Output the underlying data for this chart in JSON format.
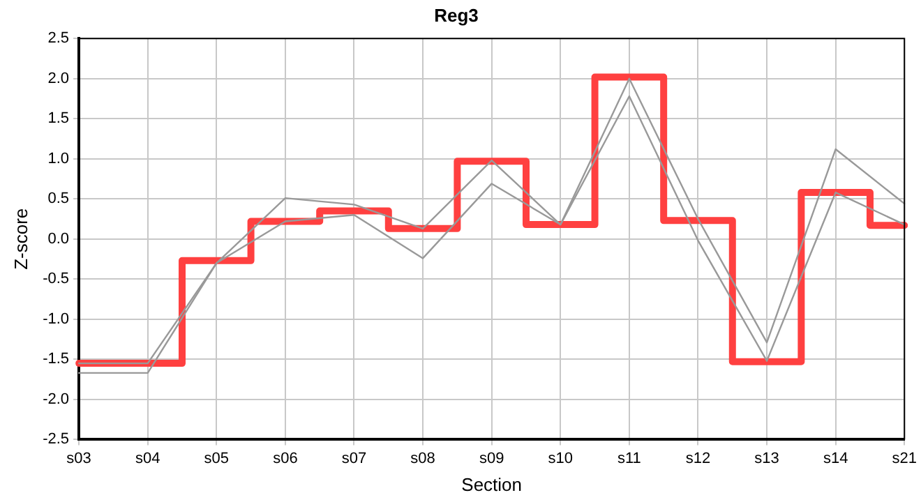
{
  "chart_data": {
    "type": "line",
    "title": "Reg3",
    "xlabel": "Section",
    "ylabel": "Z-score",
    "categories": [
      "s03",
      "s04",
      "s05",
      "s06",
      "s07",
      "s08",
      "s09",
      "s10",
      "s11",
      "s12",
      "s13",
      "s14",
      "s21"
    ],
    "series": [
      {
        "color": "#999999",
        "values": [
          -1.67,
          -1.67,
          -0.3,
          0.51,
          0.43,
          0.13,
          0.98,
          0.18,
          2.0,
          0.25,
          -1.29,
          1.12,
          0.44
        ]
      },
      {
        "color": "#999999",
        "values": [
          -1.55,
          -1.55,
          -0.3,
          0.22,
          0.3,
          -0.24,
          0.69,
          0.18,
          1.78,
          -0.02,
          -1.52,
          0.58,
          0.18
        ]
      },
      {
        "type": "step",
        "color": "#ff4040",
        "values": [
          -1.55,
          -1.55,
          -0.27,
          0.22,
          0.35,
          0.13,
          0.97,
          0.18,
          2.02,
          0.23,
          -1.53,
          0.58,
          0.17
        ]
      }
    ],
    "ylim": [
      -2.5,
      2.5
    ],
    "yticks": [
      {
        "value": -2.5,
        "label": "-2.5"
      },
      {
        "value": -2,
        "label": "-2.0"
      },
      {
        "value": -1.5,
        "label": "-1.5"
      },
      {
        "value": -1,
        "label": "-1.0"
      },
      {
        "value": -0.5,
        "label": "-0.5"
      },
      {
        "value": 0,
        "label": "0.0"
      },
      {
        "value": 0.5,
        "label": "0.5"
      },
      {
        "value": 1,
        "label": "1.0"
      },
      {
        "value": 1.5,
        "label": "1.5"
      },
      {
        "value": 2,
        "label": "2.0"
      },
      {
        "value": 2.5,
        "label": "2.5"
      }
    ],
    "grid": true,
    "legend": false,
    "marker": "none",
    "line_style": "solid"
  }
}
